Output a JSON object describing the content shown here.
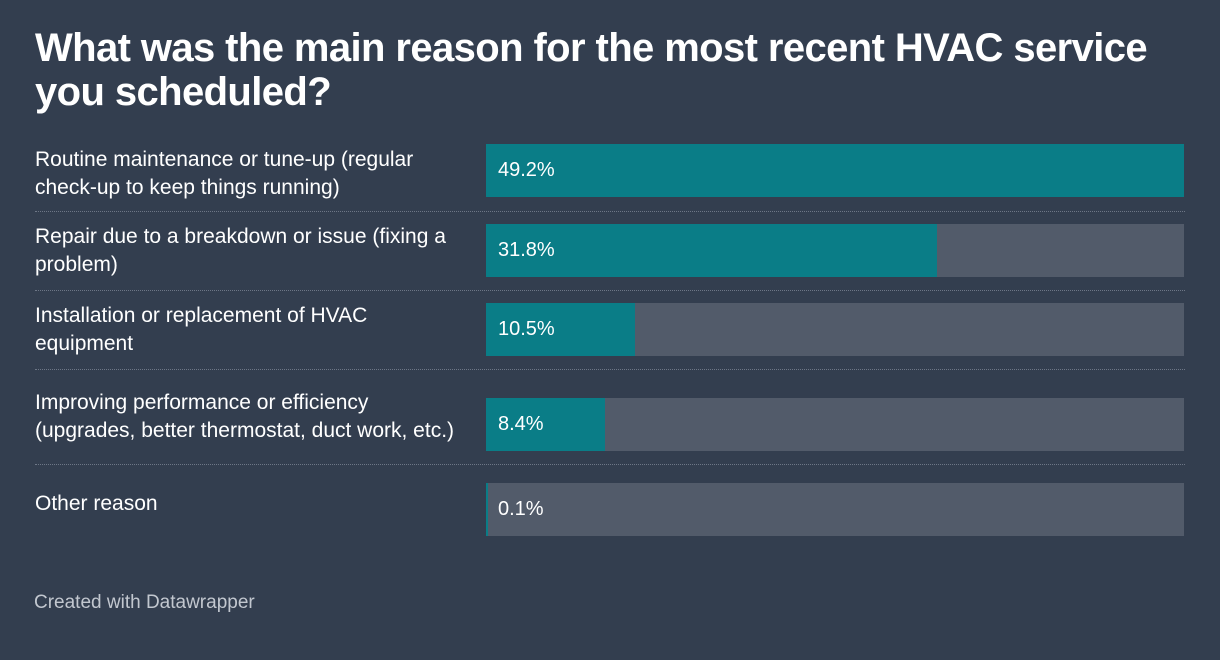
{
  "chart_data": {
    "type": "bar",
    "orientation": "horizontal",
    "title": "What was the main reason for the most recent HVAC service you scheduled?",
    "categories": [
      "Routine maintenance or tune-up (regular check-up to keep things running)",
      "Repair due to a breakdown or issue (fixing a problem)",
      "Installation or replacement of HVAC equipment",
      "Improving performance or efficiency (upgrades, better thermostat, duct work, etc.)",
      "Other reason"
    ],
    "values": [
      49.2,
      31.8,
      10.5,
      8.4,
      0.1
    ],
    "value_labels": [
      "49.2%",
      "31.8%",
      "10.5%",
      "8.4%",
      "0.1%"
    ],
    "unit": "%",
    "xlim": [
      0,
      49.2
    ],
    "grid": false,
    "legend": "none",
    "bar_color": "#0a7d87",
    "track_color": "#525b6a"
  },
  "footer": {
    "credit": "Created with Datawrapper"
  }
}
